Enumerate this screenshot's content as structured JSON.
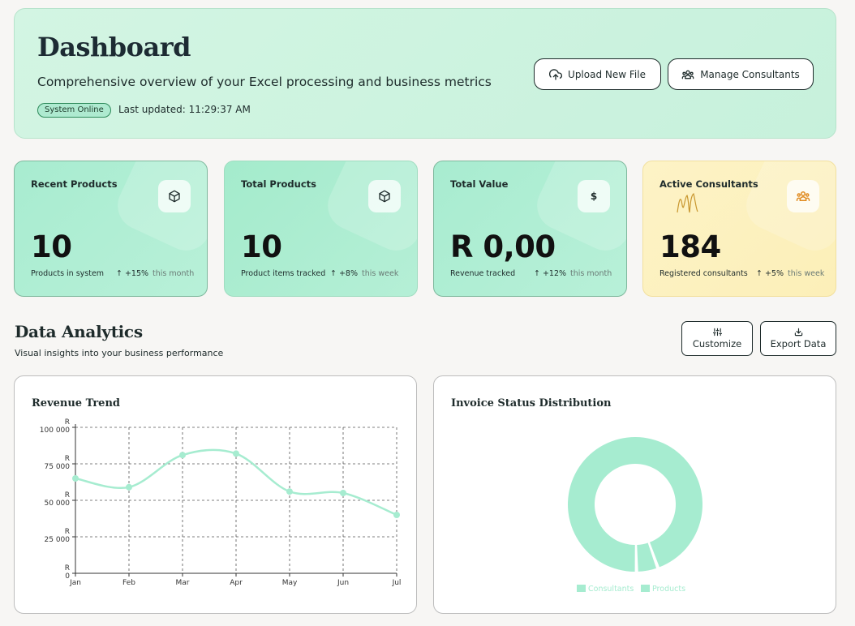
{
  "header": {
    "title": "Dashboard",
    "subtitle": "Comprehensive overview of your Excel processing and business metrics",
    "status_badge": "System Online",
    "last_updated": "Last updated: 11:29:37 AM",
    "upload_button": "Upload New File",
    "consultants_button": "Manage Consultants"
  },
  "cards": [
    {
      "title": "Recent Products",
      "icon": "cube-icon",
      "value": "10",
      "sub": "Products in system",
      "trend": "+15%",
      "period": "this month"
    },
    {
      "title": "Total Products",
      "icon": "cube-icon",
      "value": "10",
      "sub": "Product items tracked",
      "trend": "+8%",
      "period": "this week"
    },
    {
      "title": "Total Value",
      "icon": "dollar-icon",
      "icon_text": "$",
      "value": "R 0,00",
      "sub": "Revenue tracked",
      "trend": "+12%",
      "period": "this month"
    },
    {
      "title": "Active Consultants",
      "icon": "users-icon",
      "value": "184",
      "sub": "Registered consultants",
      "trend": "+5%",
      "period": "this week"
    }
  ],
  "analytics": {
    "title": "Data Analytics",
    "subtitle": "Visual insights into your business performance",
    "customize_button": "Customize",
    "export_button": "Export Data"
  },
  "colors": {
    "accent": "#a8ecd0",
    "line": "#a6ecd0",
    "yellow": "#fdf3c6"
  },
  "chart_data": [
    {
      "type": "line",
      "title": "Revenue Trend",
      "x": [
        "Jan",
        "Feb",
        "Mar",
        "Apr",
        "May",
        "Jun",
        "Jul"
      ],
      "y_tick_labels": [
        "R 0",
        "R 25 000",
        "R 50 000",
        "R 75 000",
        "R 100 000"
      ],
      "series": [
        {
          "values": [
            65000,
            59000,
            81000,
            82000,
            56000,
            55000,
            40000
          ]
        }
      ],
      "ylim": [
        0,
        100000
      ],
      "grid": true
    },
    {
      "type": "pie",
      "title": "Invoice Status Distribution",
      "categories": [
        "Consultants",
        "Products"
      ],
      "values": [
        184,
        10
      ],
      "legend": "bottom"
    }
  ]
}
